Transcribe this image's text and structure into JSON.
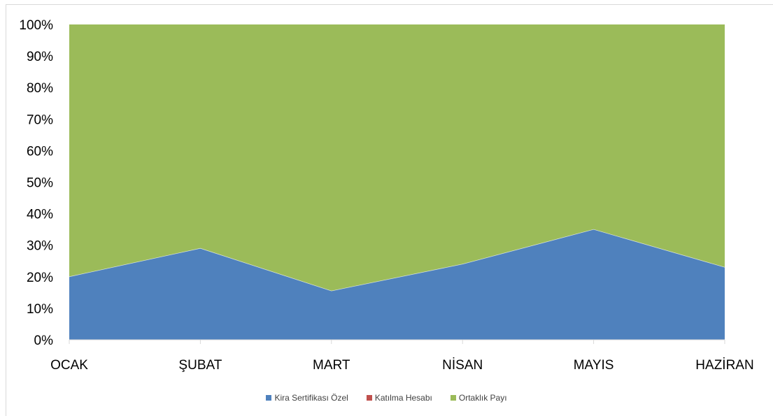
{
  "chart_data": {
    "type": "area",
    "stacked": "percent",
    "categories": [
      "OCAK",
      "ŞUBAT",
      "MART",
      "NİSAN",
      "MAYIS",
      "HAZİRAN"
    ],
    "series": [
      {
        "name": "Kira Sertifikası Özel",
        "values": [
          20,
          29,
          15.5,
          24,
          35,
          23
        ],
        "color": "#4f81bd"
      },
      {
        "name": "Katılma Hesabı",
        "values": [
          0,
          0,
          0,
          0,
          0,
          0
        ],
        "color": "#c0504d"
      },
      {
        "name": "Ortaklık Payı",
        "values": [
          80,
          71,
          84.5,
          76,
          65,
          77
        ],
        "color": "#9bbb59"
      }
    ],
    "yticks": [
      "0%",
      "10%",
      "20%",
      "30%",
      "40%",
      "50%",
      "60%",
      "70%",
      "80%",
      "90%",
      "100%"
    ],
    "ylim": [
      0,
      100
    ],
    "grid": false,
    "legend_position": "bottom"
  }
}
